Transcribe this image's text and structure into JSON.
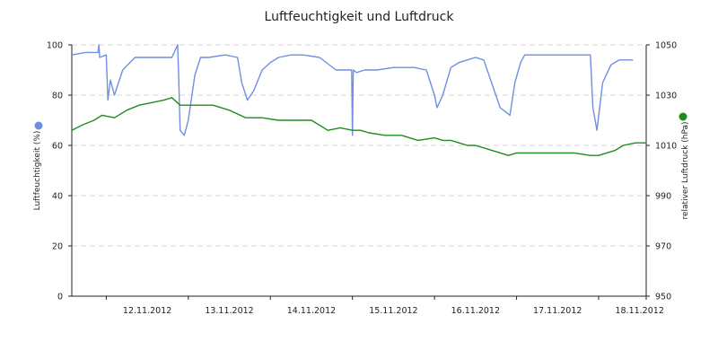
{
  "chart_data": {
    "type": "line",
    "title": "Luftfeuchtigkeit und Luftdruck",
    "x_tick_labels": [
      "12.11.2012",
      "13.11.2012",
      "14.11.2012",
      "15.11.2012",
      "16.11.2012",
      "17.11.2012",
      "18.11.2012"
    ],
    "x_range_days": [
      11.58,
      18.58
    ],
    "y_left": {
      "label": "Luftfeuchtigkeit (%)",
      "range": [
        0,
        100
      ],
      "ticks": [
        0,
        20,
        40,
        60,
        80,
        100
      ]
    },
    "y_right": {
      "label": "relativer Luftdruck (hPa)",
      "range": [
        950,
        1050
      ],
      "ticks": [
        950,
        970,
        990,
        1010,
        1030,
        1050
      ]
    },
    "grid": true,
    "legend": "axis markers",
    "series": [
      {
        "axis": "left",
        "color": "#6f8fe0",
        "x_days": [
          11.58,
          11.75,
          11.9,
          11.91,
          11.92,
          12.0,
          12.02,
          12.05,
          12.1,
          12.2,
          12.35,
          12.55,
          12.8,
          12.87,
          12.88,
          12.9,
          12.95,
          13.0,
          13.08,
          13.15,
          13.25,
          13.45,
          13.6,
          13.65,
          13.72,
          13.8,
          13.9,
          14.0,
          14.1,
          14.25,
          14.4,
          14.6,
          14.8,
          14.99,
          15.0,
          15.01,
          15.05,
          15.15,
          15.3,
          15.5,
          15.75,
          15.9,
          16.0,
          16.03,
          16.1,
          16.2,
          16.3,
          16.4,
          16.5,
          16.6,
          16.8,
          16.92,
          16.98,
          17.05,
          17.1,
          17.2,
          17.3,
          17.4,
          17.6,
          17.8,
          17.9,
          17.93,
          17.98,
          18.05,
          18.15,
          18.25,
          18.35,
          18.42
        ],
        "values": [
          96,
          97,
          97,
          100,
          95,
          96,
          78,
          86,
          80,
          90,
          95,
          95,
          95,
          100,
          90,
          66,
          64,
          70,
          88,
          95,
          95,
          96,
          95,
          85,
          78,
          82,
          90,
          93,
          95,
          96,
          96,
          95,
          90,
          90,
          64,
          90,
          89,
          90,
          90,
          91,
          91,
          90,
          80,
          75,
          80,
          91,
          93,
          94,
          95,
          94,
          75,
          72,
          85,
          93,
          96,
          96,
          96,
          96,
          96,
          96,
          96,
          75,
          66,
          85,
          92,
          94,
          94,
          94
        ]
      },
      {
        "axis": "right",
        "color": "#1e8c1e",
        "x_days": [
          11.58,
          11.7,
          11.85,
          11.95,
          12.1,
          12.25,
          12.4,
          12.55,
          12.7,
          12.8,
          12.9,
          13.0,
          13.1,
          13.3,
          13.5,
          13.7,
          13.9,
          14.1,
          14.3,
          14.5,
          14.7,
          14.85,
          15.0,
          15.1,
          15.2,
          15.4,
          15.6,
          15.8,
          16.0,
          16.1,
          16.2,
          16.3,
          16.4,
          16.5,
          16.7,
          16.9,
          17.0,
          17.1,
          17.3,
          17.5,
          17.7,
          17.9,
          18.0,
          18.1,
          18.2,
          18.3,
          18.45,
          18.58
        ],
        "values": [
          1016,
          1018,
          1020,
          1022,
          1021,
          1024,
          1026,
          1027,
          1028,
          1029,
          1026,
          1026,
          1026,
          1026,
          1024,
          1021,
          1021,
          1020,
          1020,
          1020,
          1016,
          1017,
          1016,
          1016,
          1015,
          1014,
          1014,
          1012,
          1013,
          1012,
          1012,
          1011,
          1010,
          1010,
          1008,
          1006,
          1007,
          1007,
          1007,
          1007,
          1007,
          1006,
          1006,
          1007,
          1008,
          1010,
          1011,
          1011
        ]
      }
    ]
  }
}
